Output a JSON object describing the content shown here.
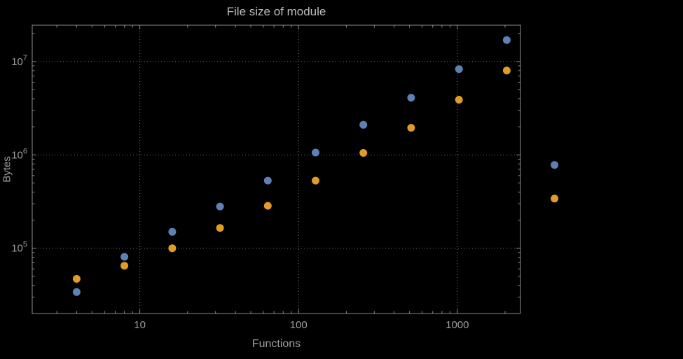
{
  "title": "File size of module",
  "xlabel": "Functions",
  "ylabel": "Bytes",
  "colors": {
    "background": "#000000",
    "frame": "#8c8c8c",
    "grid": "#757575",
    "tick_label": "#9e9e9e",
    "title": "#bdbdbd",
    "series1": "#5e81b5",
    "series2": "#e09c24"
  },
  "chart_data": {
    "type": "scatter",
    "title": "File size of module",
    "xlabel": "Functions",
    "ylabel": "Bytes",
    "xscale": "log",
    "yscale": "log",
    "grid": true,
    "xlim": [
      2.1,
      2500
    ],
    "ylim": [
      20000,
      24500000
    ],
    "xticks": [
      10,
      100,
      1000
    ],
    "yticks": [
      100000,
      1000000,
      10000000
    ],
    "x": [
      4,
      8,
      16,
      32,
      64,
      128,
      256,
      512,
      1024,
      2048,
      4096
    ],
    "series": [
      {
        "name": "series1",
        "color": "#5e81b5",
        "values": [
          34000,
          81000,
          150000,
          280000,
          530000,
          1060000,
          2100000,
          4100000,
          8300000,
          17000000,
          780000
        ]
      },
      {
        "name": "series2",
        "color": "#e09c24",
        "values": [
          47000,
          65000,
          100000,
          165000,
          285000,
          530000,
          1050000,
          1950000,
          3900000,
          8000000,
          340000
        ]
      }
    ]
  }
}
